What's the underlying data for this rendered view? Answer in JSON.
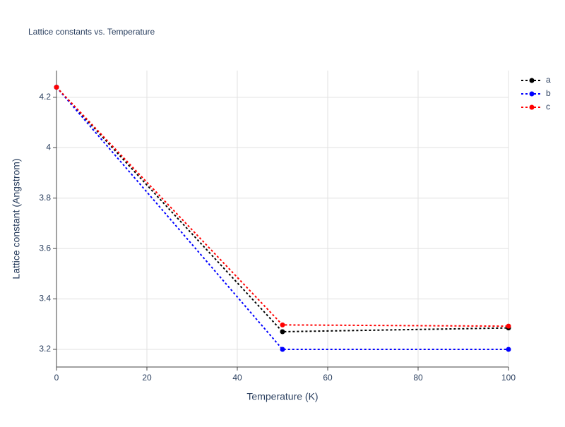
{
  "chart_data": {
    "type": "line",
    "title": "Lattice constants vs. Temperature",
    "x_label": "Temperature (K)",
    "y_label": "Lattice constant (Angstrom)",
    "x": [
      0,
      50,
      100
    ],
    "series": [
      {
        "name": "a",
        "color": "#000000",
        "values": [
          4.24,
          3.27,
          3.285
        ]
      },
      {
        "name": "b",
        "color": "#0000ff",
        "values": [
          4.24,
          3.2,
          3.2
        ]
      },
      {
        "name": "c",
        "color": "#ff0000",
        "values": [
          4.24,
          3.297,
          3.292
        ]
      }
    ],
    "xlim": [
      0,
      100
    ],
    "xticks": [
      0,
      20,
      40,
      60,
      80,
      100
    ],
    "ylim": [
      3.13,
      4.306
    ],
    "yticks": [
      3.2,
      3.4,
      3.6,
      3.8,
      4,
      4.2
    ],
    "grid": true,
    "line_style": "dotted",
    "legend": "top-right"
  }
}
